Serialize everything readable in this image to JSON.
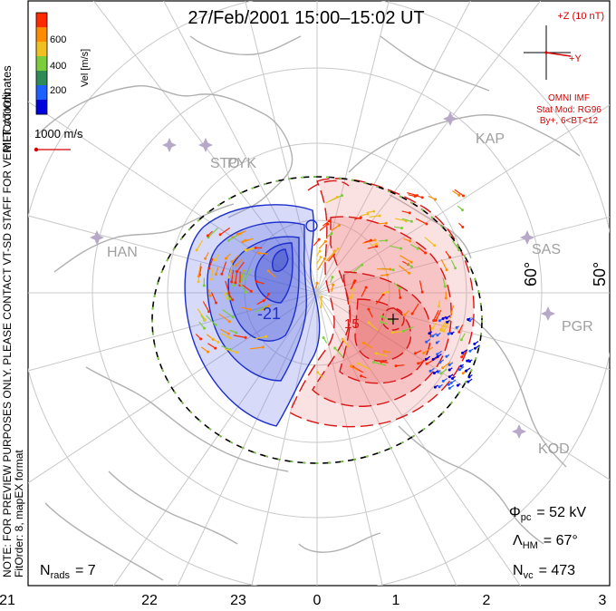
{
  "title": "27/Feb/2001 15:00–15:02 UT",
  "coordinates_label": "MLT coordinates",
  "velocity_scale": {
    "label": "Vel [m/s]",
    "ticks": [
      "600",
      "400",
      "200"
    ],
    "colors": [
      "#ff2a00",
      "#ff8c00",
      "#f0c020",
      "#7ccd3c",
      "#2e8b57",
      "#1e5fff",
      "#0000dd"
    ]
  },
  "reference_vector": {
    "label": "1000 m/s",
    "color": "#d40000"
  },
  "imf": {
    "z_label": "+Z (10 nT)",
    "y_label": "+Y",
    "source": "OMNI IMF",
    "model_line1": "Stat Mod: RG96",
    "model_line2": "By+, 6<BT<12",
    "color": "#d40000"
  },
  "stations": [
    "KAP",
    "STO",
    "PYK",
    "HAN",
    "SAS",
    "PGR",
    "KOD"
  ],
  "latitude_labels": [
    "60°",
    "50°"
  ],
  "mlt_labels": [
    "21",
    "22",
    "23",
    "0",
    "1",
    "2",
    "3"
  ],
  "contour_labels": [
    "-21",
    "15"
  ],
  "disclaimer": "NOTE: FOR PREVIEW PURPOSES ONLY. PLEASE CONTACT VT-SD STAFF FOR VERIFICATION.",
  "fit_order": "FitOrder: 8, mapEX format",
  "stats": {
    "phi_pc_symbol": "Φ",
    "phi_pc_sub": "pc",
    "phi_pc_value": "= 52 kV",
    "lambda_hm_symbol": "Λ",
    "lambda_hm_sub": "HM",
    "lambda_hm_value": "= 67°",
    "n_vc_symbol": "N",
    "n_vc_sub": "vc",
    "n_vc_value": "= 473",
    "n_rads_symbol": "N",
    "n_rads_sub": "rads",
    "n_rads_value": "= 7"
  }
}
